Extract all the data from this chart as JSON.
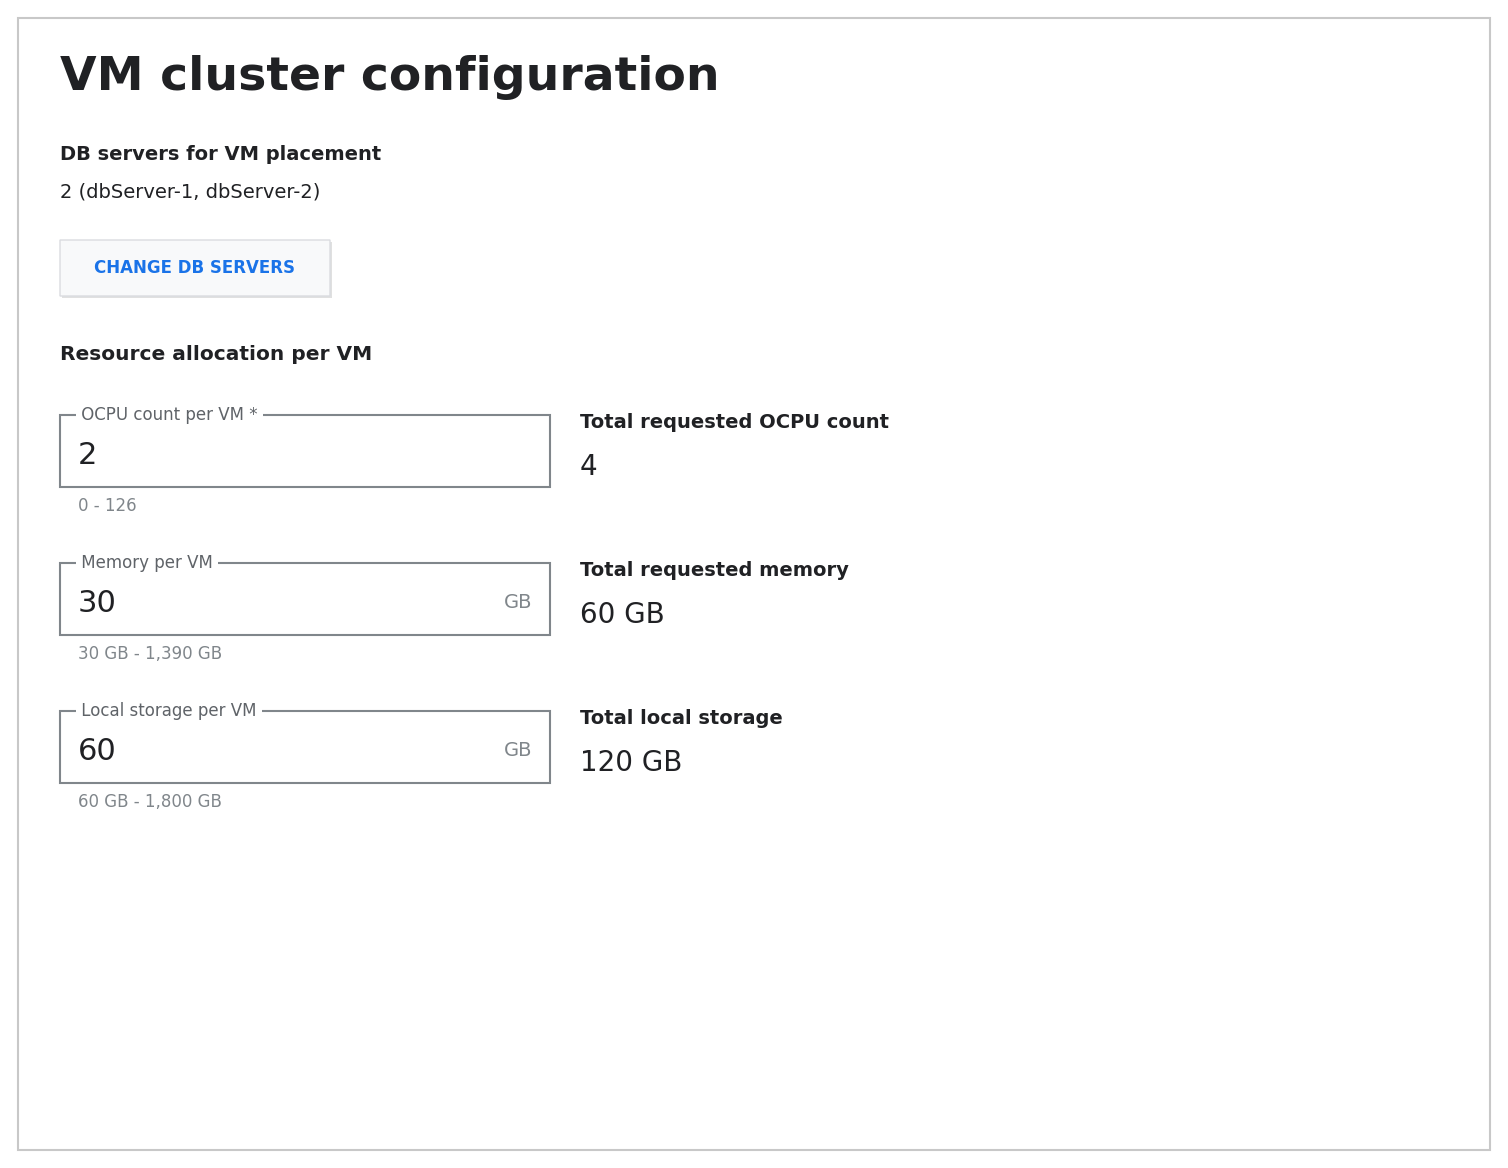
{
  "title": "VM cluster configuration",
  "bg_color": "#ffffff",
  "border_color": "#c8c8c8",
  "title_fontsize": 34,
  "db_servers_label": "DB servers for VM placement",
  "db_servers_value": "2 (dbServer-1, dbServer-2)",
  "button_text": "CHANGE DB SERVERS",
  "button_color": "#1a73e8",
  "button_border_color": "#dadce0",
  "button_bg": "#f8f9fa",
  "section_label": "Resource allocation per VM",
  "fields": [
    {
      "label": "OCPU count per VM *",
      "value": "2",
      "unit": "",
      "hint": "0 - 126",
      "total_label": "Total requested OCPU count",
      "total_value": "4"
    },
    {
      "label": "Memory per VM",
      "value": "30",
      "unit": "GB",
      "hint": "30 GB - 1,390 GB",
      "total_label": "Total requested memory",
      "total_value": "60 GB"
    },
    {
      "label": "Local storage per VM",
      "value": "60",
      "unit": "GB",
      "hint": "60 GB - 1,800 GB",
      "total_label": "Total local storage",
      "total_value": "120 GB"
    }
  ],
  "text_color": "#202124",
  "hint_color": "#80868b",
  "label_color": "#5f6368",
  "field_border_color": "#80868b",
  "total_label_fontsize": 14,
  "total_value_fontsize": 20
}
